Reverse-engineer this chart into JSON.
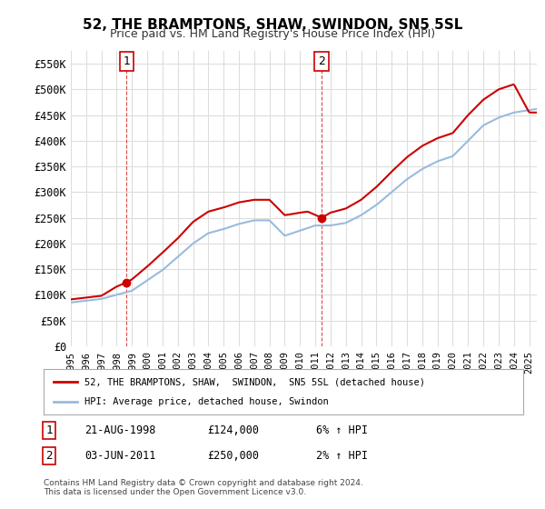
{
  "title": "52, THE BRAMPTONS, SHAW, SWINDON, SN5 5SL",
  "subtitle": "Price paid vs. HM Land Registry's House Price Index (HPI)",
  "xlabel": "",
  "ylabel": "",
  "background_color": "#ffffff",
  "plot_bg_color": "#ffffff",
  "grid_color": "#dddddd",
  "ylim": [
    0,
    575000
  ],
  "yticks": [
    0,
    50000,
    100000,
    150000,
    200000,
    250000,
    300000,
    350000,
    400000,
    450000,
    500000,
    550000
  ],
  "ytick_labels": [
    "£0",
    "£50K",
    "£100K",
    "£150K",
    "£200K",
    "£250K",
    "£300K",
    "£350K",
    "£400K",
    "£450K",
    "£500K",
    "£550K"
  ],
  "sale1_date": 1998.64,
  "sale1_price": 124000,
  "sale2_date": 2011.42,
  "sale2_price": 250000,
  "legend_line1": "52, THE BRAMPTONS, SHAW,  SWINDON,  SN5 5SL (detached house)",
  "legend_line2": "HPI: Average price, detached house, Swindon",
  "table_row1": [
    "1",
    "21-AUG-1998",
    "£124,000",
    "6% ↑ HPI"
  ],
  "table_row2": [
    "2",
    "03-JUN-2011",
    "£250,000",
    "2% ↑ HPI"
  ],
  "footer": "Contains HM Land Registry data © Crown copyright and database right 2024.\nThis data is licensed under the Open Government Licence v3.0.",
  "red_color": "#cc0000",
  "blue_color": "#99bbdd",
  "hpi_red_color": "#dd4444",
  "marker_color": "#cc0000",
  "xlim_left": 1995.0,
  "xlim_right": 2025.5
}
